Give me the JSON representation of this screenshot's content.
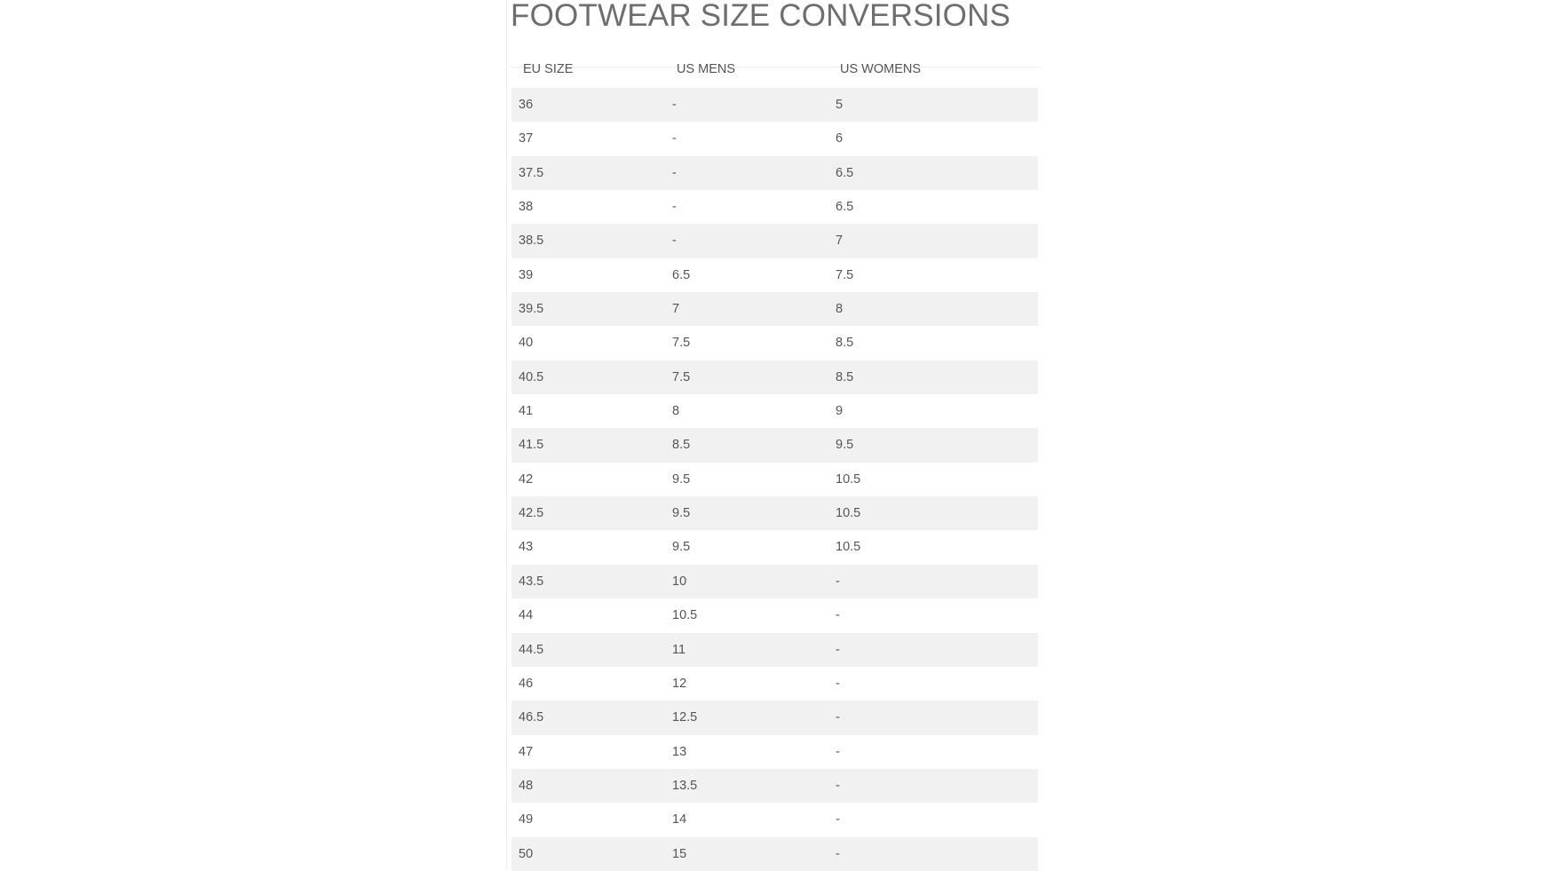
{
  "title": "FOOTWEAR SIZE CONVERSIONS",
  "table": {
    "headers": [
      "EU SIZE",
      "US MENS",
      "US WOMENS"
    ],
    "rows": [
      [
        "36",
        "-",
        "5"
      ],
      [
        "37",
        "-",
        "6"
      ],
      [
        "37.5",
        "-",
        "6.5"
      ],
      [
        "38",
        "-",
        "6.5"
      ],
      [
        "38.5",
        "-",
        "7"
      ],
      [
        "39",
        "6.5",
        "7.5"
      ],
      [
        "39.5",
        "7",
        "8"
      ],
      [
        "40",
        "7.5",
        "8.5"
      ],
      [
        "40.5",
        "7.5",
        "8.5"
      ],
      [
        "41",
        "8",
        "9"
      ],
      [
        "41.5",
        "8.5",
        "9.5"
      ],
      [
        "42",
        "9.5",
        "10.5"
      ],
      [
        "42.5",
        "9.5",
        "10.5"
      ],
      [
        "43",
        "9.5",
        "10.5"
      ],
      [
        "43.5",
        "10",
        "-"
      ],
      [
        "44",
        "10.5",
        "-"
      ],
      [
        "44.5",
        "11",
        "-"
      ],
      [
        "46",
        "12",
        "-"
      ],
      [
        "46.5",
        "12.5",
        "-"
      ],
      [
        "47",
        "13",
        "-"
      ],
      [
        "48",
        "13.5",
        "-"
      ],
      [
        "49",
        "14",
        "-"
      ],
      [
        "50",
        "15",
        "-"
      ]
    ]
  },
  "colors": {
    "stripe": "#f1f1f1",
    "text": "#555555",
    "title": "#6e6e6e"
  }
}
